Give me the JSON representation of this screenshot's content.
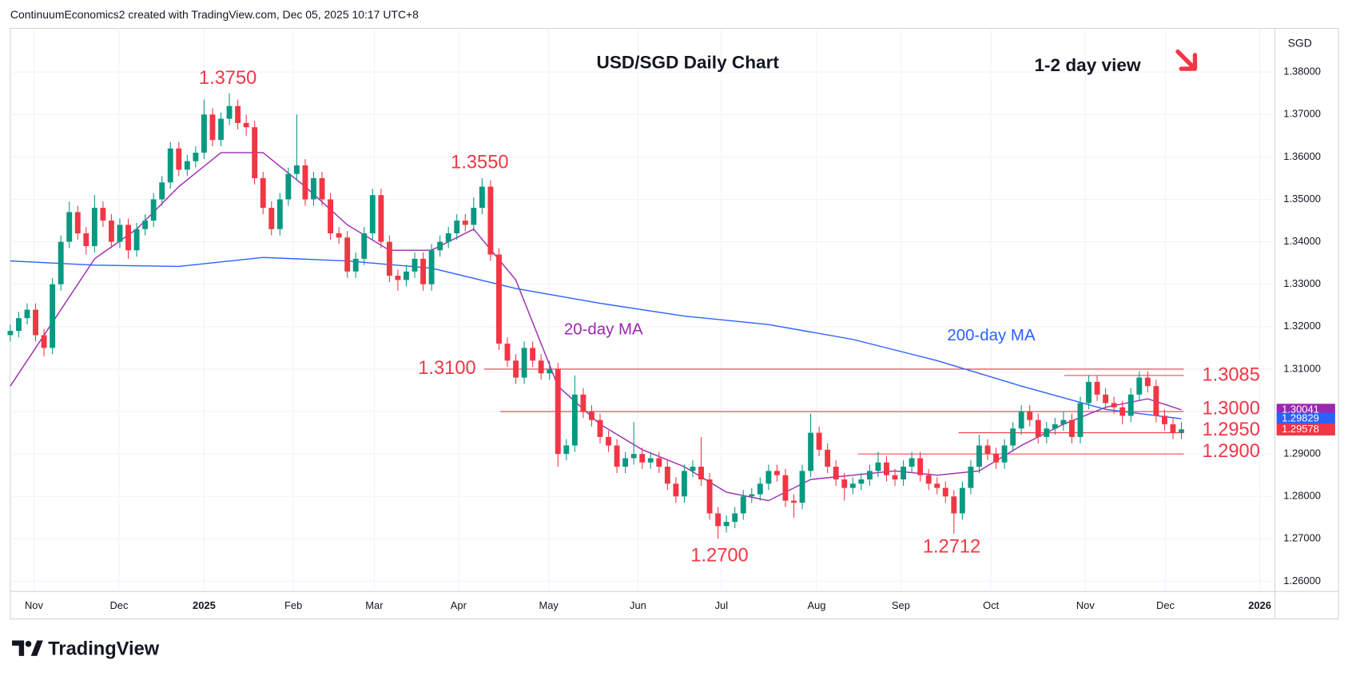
{
  "header": "ContinuumEconomics2 created with TradingView.com, Dec 05, 2025 10:17 UTC+8",
  "logo": "TradingView",
  "chart_data": {
    "type": "candlestick",
    "title": "USD/SGD Daily Chart",
    "subtitle": "1-2 day view",
    "currency": "SGD",
    "up_color": "#089981",
    "down_color": "#f23645",
    "grid": true,
    "xlim": [
      0,
      150.1
    ],
    "ylim": [
      1.2576,
      1.3903
    ],
    "xticks": [
      {
        "value": 2.8,
        "label": "Nov"
      },
      {
        "value": 12.9,
        "label": "Dec"
      },
      {
        "value": 23,
        "label": "2025"
      },
      {
        "value": 33.6,
        "label": "Feb"
      },
      {
        "value": 43.2,
        "label": "Mar"
      },
      {
        "value": 53.2,
        "label": "Apr"
      },
      {
        "value": 63.9,
        "label": "May"
      },
      {
        "value": 74.5,
        "label": "Jun"
      },
      {
        "value": 84.4,
        "label": "Jul"
      },
      {
        "value": 95.7,
        "label": "Aug"
      },
      {
        "value": 105.7,
        "label": "Sep"
      },
      {
        "value": 116.4,
        "label": "Oct"
      },
      {
        "value": 127.6,
        "label": "Nov"
      },
      {
        "value": 137.1,
        "label": "Dec"
      },
      {
        "value": 148.3,
        "label": "2026"
      }
    ],
    "yticks": [
      {
        "value": 1.38,
        "label": "1.38000"
      },
      {
        "value": 1.37,
        "label": "1.37000"
      },
      {
        "value": 1.36,
        "label": "1.36000"
      },
      {
        "value": 1.35,
        "label": "1.35000"
      },
      {
        "value": 1.34,
        "label": "1.34000"
      },
      {
        "value": 1.33,
        "label": "1.33000"
      },
      {
        "value": 1.32,
        "label": "1.32000"
      },
      {
        "value": 1.31,
        "label": "1.31000"
      },
      {
        "value": 1.3,
        "label": "1.30000"
      },
      {
        "value": 1.29,
        "label": "1.29000"
      },
      {
        "value": 1.28,
        "label": "1.28000"
      },
      {
        "value": 1.27,
        "label": "1.27000"
      },
      {
        "value": 1.26,
        "label": "1.26000"
      }
    ],
    "open": [
      1.318,
      1.319,
      1.322,
      1.324,
      1.318,
      1.315,
      1.33,
      1.34,
      1.347,
      1.342,
      1.339,
      1.348,
      1.345,
      1.34,
      1.344,
      1.338,
      1.343,
      1.345,
      1.35,
      1.354,
      1.362,
      1.357,
      1.359,
      1.361,
      1.37,
      1.364,
      1.369,
      1.372,
      1.368,
      1.367,
      1.355,
      1.348,
      1.343,
      1.35,
      1.356,
      1.358,
      1.35,
      1.355,
      1.35,
      1.342,
      1.341,
      1.333,
      1.336,
      1.342,
      1.351,
      1.34,
      1.332,
      1.331,
      1.333,
      1.336,
      1.33,
      1.338,
      1.34,
      1.342,
      1.345,
      1.344,
      1.348,
      1.353,
      1.337,
      1.316,
      1.312,
      1.308,
      1.315,
      1.312,
      1.309,
      1.31,
      1.29,
      1.292,
      1.304,
      1.3,
      1.298,
      1.294,
      1.292,
      1.287,
      1.289,
      1.29,
      1.288,
      1.289,
      1.287,
      1.283,
      1.28,
      1.286,
      1.287,
      1.284,
      1.276,
      1.273,
      1.274,
      1.276,
      1.28,
      1.2805,
      1.283,
      1.286,
      1.285,
      1.279,
      1.2785,
      1.286,
      1.295,
      1.291,
      1.287,
      1.284,
      1.282,
      1.283,
      1.284,
      1.286,
      1.288,
      1.285,
      1.284,
      1.287,
      1.289,
      1.285,
      1.283,
      1.282,
      1.28,
      1.276,
      1.282,
      1.287,
      1.292,
      1.29,
      1.288,
      1.292,
      1.296,
      1.3,
      1.298,
      1.294,
      1.296,
      1.297,
      1.298,
      1.294,
      1.302,
      1.307,
      1.304,
      1.302,
      1.301,
      1.299,
      1.304,
      1.308,
      1.306,
      1.299,
      1.297,
      1.295
    ],
    "high": [
      1.3205,
      1.3235,
      1.3255,
      1.3255,
      1.3195,
      1.3315,
      1.3415,
      1.3495,
      1.3485,
      1.3435,
      1.351,
      1.3495,
      1.3465,
      1.3455,
      1.3455,
      1.3445,
      1.3465,
      1.3515,
      1.3555,
      1.3635,
      1.3635,
      1.3605,
      1.3625,
      1.3735,
      1.3715,
      1.3705,
      1.375,
      1.3735,
      1.37,
      1.3685,
      1.3565,
      1.3495,
      1.3515,
      1.3575,
      1.37,
      1.3595,
      1.3565,
      1.3565,
      1.3515,
      1.3435,
      1.3425,
      1.3375,
      1.3435,
      1.3525,
      1.3525,
      1.3415,
      1.3335,
      1.3345,
      1.3375,
      1.3375,
      1.3395,
      1.3415,
      1.3435,
      1.3465,
      1.3465,
      1.3505,
      1.355,
      1.3545,
      1.3385,
      1.3175,
      1.3135,
      1.3165,
      1.3165,
      1.3135,
      1.312,
      1.3115,
      1.2935,
      1.3085,
      1.3055,
      1.3015,
      1.2995,
      1.2955,
      1.2935,
      1.2905,
      1.2975,
      1.2915,
      1.2905,
      1.2905,
      1.2885,
      1.2845,
      1.2875,
      1.2885,
      1.294,
      1.2855,
      1.2775,
      1.2755,
      1.2775,
      1.2815,
      1.282,
      1.2845,
      1.2875,
      1.2875,
      1.2865,
      1.2805,
      1.2875,
      1.2995,
      1.2965,
      1.2925,
      1.2885,
      1.2855,
      1.2845,
      1.2855,
      1.2875,
      1.2905,
      1.2895,
      1.2865,
      1.2885,
      1.2905,
      1.2905,
      1.2865,
      1.2845,
      1.2835,
      1.2815,
      1.2835,
      1.2885,
      1.2945,
      1.2935,
      1.2915,
      1.2935,
      1.2975,
      1.3015,
      1.3015,
      1.2995,
      1.2975,
      1.2985,
      1.3,
      1.2995,
      1.3035,
      1.3085,
      1.3085,
      1.3055,
      1.3035,
      1.3025,
      1.3055,
      1.3095,
      1.3095,
      1.3075,
      1.3005,
      1.2985,
      1.2975
    ],
    "low": [
      1.3165,
      1.3175,
      1.3205,
      1.3165,
      1.313,
      1.3135,
      1.3285,
      1.3385,
      1.3405,
      1.337,
      1.3375,
      1.3435,
      1.3385,
      1.3385,
      1.336,
      1.3365,
      1.3415,
      1.3435,
      1.3485,
      1.3525,
      1.3555,
      1.3555,
      1.3575,
      1.3595,
      1.3625,
      1.3625,
      1.3675,
      1.3665,
      1.365,
      1.3535,
      1.3465,
      1.3415,
      1.3415,
      1.3485,
      1.3545,
      1.3485,
      1.3485,
      1.3485,
      1.3405,
      1.3395,
      1.3315,
      1.3315,
      1.3345,
      1.3405,
      1.3385,
      1.3305,
      1.3285,
      1.3295,
      1.3315,
      1.3285,
      1.3285,
      1.3365,
      1.3385,
      1.3405,
      1.3425,
      1.3425,
      1.3465,
      1.3355,
      1.3145,
      1.3105,
      1.3065,
      1.3065,
      1.3105,
      1.3075,
      1.3075,
      1.287,
      1.2885,
      1.2905,
      1.2985,
      1.2965,
      1.2925,
      1.2905,
      1.2855,
      1.2855,
      1.2875,
      1.2865,
      1.2865,
      1.2855,
      1.2815,
      1.2785,
      1.2785,
      1.2845,
      1.2825,
      1.2745,
      1.27,
      1.2715,
      1.2725,
      1.2745,
      1.2785,
      1.279,
      1.2815,
      1.2835,
      1.2775,
      1.275,
      1.277,
      1.2845,
      1.2895,
      1.2855,
      1.2825,
      1.279,
      1.2805,
      1.2815,
      1.2825,
      1.2845,
      1.2835,
      1.2825,
      1.2825,
      1.2855,
      1.2835,
      1.2815,
      1.2805,
      1.2785,
      1.2712,
      1.2745,
      1.2805,
      1.2855,
      1.2885,
      1.2865,
      1.2865,
      1.2905,
      1.2945,
      1.2965,
      1.2925,
      1.2925,
      1.2945,
      1.2955,
      1.2925,
      1.2925,
      1.3005,
      1.3025,
      1.3005,
      1.2995,
      1.297,
      1.2975,
      1.3025,
      1.3045,
      1.2975,
      1.2955,
      1.2935,
      1.2935
    ],
    "close": [
      1.319,
      1.322,
      1.324,
      1.318,
      1.315,
      1.33,
      1.34,
      1.347,
      1.342,
      1.339,
      1.348,
      1.345,
      1.34,
      1.344,
      1.338,
      1.343,
      1.345,
      1.35,
      1.354,
      1.362,
      1.357,
      1.359,
      1.361,
      1.37,
      1.364,
      1.369,
      1.372,
      1.368,
      1.367,
      1.355,
      1.348,
      1.343,
      1.35,
      1.356,
      1.358,
      1.35,
      1.355,
      1.35,
      1.342,
      1.341,
      1.333,
      1.336,
      1.342,
      1.351,
      1.34,
      1.332,
      1.331,
      1.333,
      1.336,
      1.33,
      1.338,
      1.34,
      1.342,
      1.345,
      1.344,
      1.348,
      1.353,
      1.337,
      1.316,
      1.312,
      1.308,
      1.315,
      1.312,
      1.309,
      1.31,
      1.29,
      1.292,
      1.304,
      1.3,
      1.298,
      1.294,
      1.292,
      1.287,
      1.289,
      1.29,
      1.288,
      1.289,
      1.287,
      1.283,
      1.28,
      1.286,
      1.287,
      1.284,
      1.276,
      1.273,
      1.274,
      1.276,
      1.28,
      1.2805,
      1.283,
      1.286,
      1.285,
      1.279,
      1.2785,
      1.286,
      1.295,
      1.291,
      1.287,
      1.284,
      1.282,
      1.283,
      1.284,
      1.286,
      1.288,
      1.285,
      1.284,
      1.287,
      1.289,
      1.285,
      1.283,
      1.282,
      1.28,
      1.276,
      1.282,
      1.287,
      1.292,
      1.29,
      1.288,
      1.292,
      1.296,
      1.3,
      1.298,
      1.294,
      1.296,
      1.297,
      1.298,
      1.294,
      1.302,
      1.307,
      1.304,
      1.302,
      1.301,
      1.299,
      1.304,
      1.308,
      1.306,
      1.299,
      1.297,
      1.295,
      1.2958
    ],
    "lines": [
      {
        "name": "20-day MA",
        "color": "#9c27b0",
        "x": [
          0,
          5,
          10,
          15,
          20,
          25,
          30,
          35,
          40,
          45,
          50,
          55,
          60,
          65,
          70,
          75,
          80,
          85,
          90,
          95,
          100,
          105,
          110,
          115,
          120,
          125,
          130,
          135,
          139
        ],
        "values": [
          1.306,
          1.321,
          1.336,
          1.343,
          1.353,
          1.361,
          1.361,
          1.353,
          1.344,
          1.338,
          1.338,
          1.343,
          1.331,
          1.306,
          1.297,
          1.291,
          1.287,
          1.281,
          1.279,
          1.284,
          1.285,
          1.286,
          1.285,
          1.286,
          1.292,
          1.297,
          1.301,
          1.303,
          1.3004
        ]
      },
      {
        "name": "200-day MA",
        "color": "#2962ff",
        "x": [
          0,
          10,
          20,
          30,
          40,
          50,
          60,
          70,
          80,
          90,
          100,
          110,
          120,
          130,
          139
        ],
        "values": [
          1.3355,
          1.3345,
          1.3342,
          1.3363,
          1.3355,
          1.3338,
          1.329,
          1.3255,
          1.3225,
          1.3205,
          1.317,
          1.312,
          1.306,
          1.3005,
          1.2983
        ]
      }
    ],
    "levels": [
      {
        "value": 1.31,
        "label": "1.3100"
      },
      {
        "value": 1.3085,
        "label": "1.3085"
      },
      {
        "value": 1.3,
        "label": "1.3000"
      },
      {
        "value": 1.295,
        "label": "1.2950"
      },
      {
        "value": 1.29,
        "label": "1.2900"
      }
    ],
    "level_color": "#f23645",
    "annotations": [
      "1.3750",
      "1.3550",
      "1.2700",
      "1.2712"
    ],
    "price_tags": [
      {
        "value": 1.30041,
        "color": "#9c27b0"
      },
      {
        "value": 1.29829,
        "color": "#2962ff"
      },
      {
        "value": 1.29578,
        "color": "#f23645"
      }
    ]
  }
}
